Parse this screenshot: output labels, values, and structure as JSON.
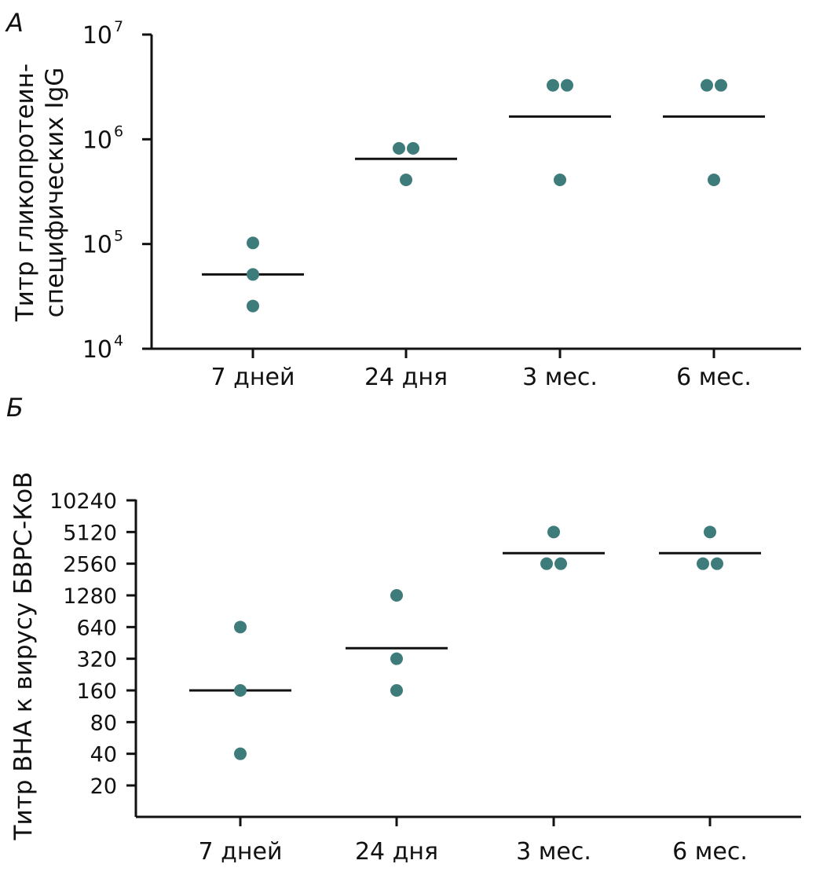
{
  "chart_data": [
    {
      "panel": "А",
      "type": "scatter",
      "categories": [
        "7 дней",
        "24 дня",
        "3 мес.",
        "6 мес."
      ],
      "ylabel_lines": [
        "Титр гликопротеин-",
        "специфических IgG"
      ],
      "yscale": "log10",
      "ylim": [
        10000,
        10000000
      ],
      "yticks": [
        {
          "value": 10000,
          "base": "10",
          "exp": "4"
        },
        {
          "value": 100000,
          "base": "10",
          "exp": "5"
        },
        {
          "value": 1000000,
          "base": "10",
          "exp": "6"
        },
        {
          "value": 10000000,
          "base": "10",
          "exp": "7"
        }
      ],
      "points": [
        [
          102400,
          51200,
          25600
        ],
        [
          819200,
          819200,
          409600
        ],
        [
          3276800,
          3276800,
          409600
        ],
        [
          3276800,
          3276800,
          409600
        ]
      ],
      "means": [
        51200,
        650000,
        1650000,
        1650000
      ],
      "dot_color": "#3e7c7b"
    },
    {
      "panel": "Б",
      "type": "scatter",
      "categories": [
        "7 дней",
        "24 дня",
        "3 мес.",
        "6 мес."
      ],
      "ylabel": "Титр ВНА к вирусу БВРС-КоВ",
      "yscale": "log2",
      "ylim": [
        10,
        10240
      ],
      "yticks": [
        "20",
        "40",
        "80",
        "160",
        "320",
        "640",
        "1280",
        "2560",
        "5120",
        "10240"
      ],
      "points": [
        [
          640,
          160,
          40
        ],
        [
          1280,
          320,
          160
        ],
        [
          5120,
          2560,
          2560
        ],
        [
          5120,
          2560,
          2560
        ]
      ],
      "means": [
        160,
        403,
        3225,
        3225
      ],
      "dot_color": "#3e7c7b"
    }
  ]
}
